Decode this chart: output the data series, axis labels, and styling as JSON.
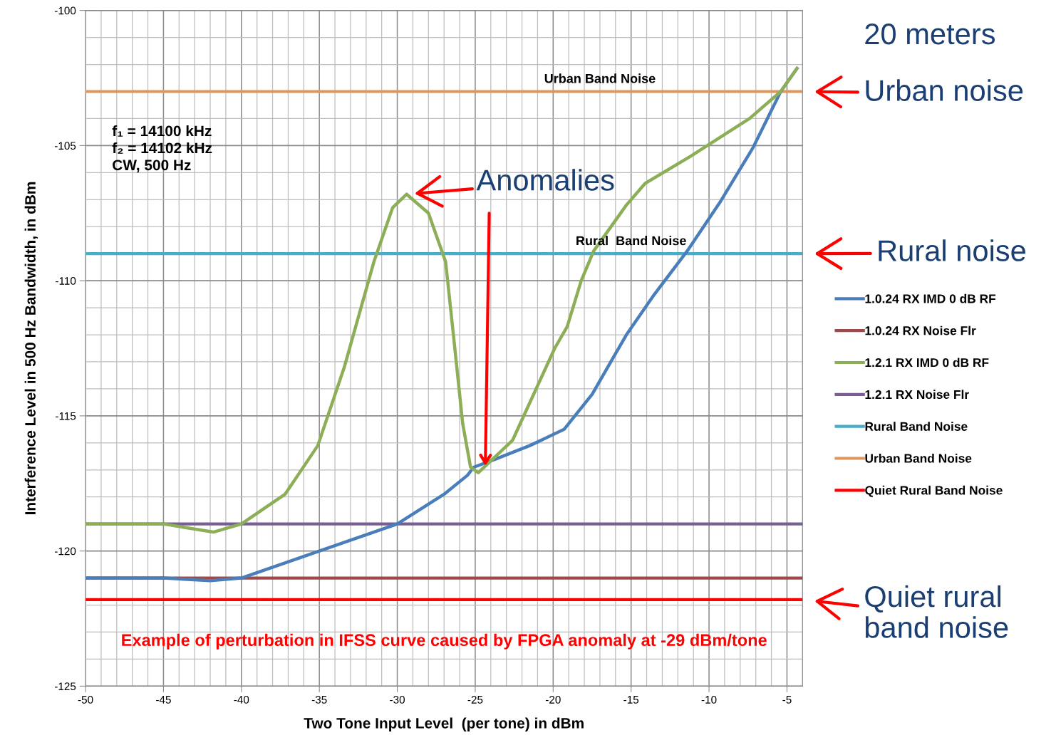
{
  "chart_data": {
    "type": "line",
    "xlabel": "Two Tone Input Level  (per tone) in dBm",
    "ylabel": "Interference Level in 500 Hz Bandwidth, in dBm",
    "xlim": [
      -50,
      -4
    ],
    "xticks": [
      -50,
      -45,
      -40,
      -35,
      -30,
      -25,
      -20,
      -15,
      -10,
      -5
    ],
    "ylim": [
      -125,
      -100
    ],
    "yticks": [
      -125,
      -120,
      -115,
      -110,
      -105,
      -100
    ],
    "grid": true,
    "legend": "right",
    "marker": "none",
    "line_style": "solid",
    "series": [
      {
        "name": "1.0.24 RX IMD 0 dB RF",
        "color": "#4a7ebb",
        "x": [
          -50,
          -45,
          -42,
          -40,
          -37.5,
          -35,
          -32.5,
          -30,
          -27,
          -25.5,
          -25.1,
          -23.7,
          -21.5,
          -19.3,
          -17.5,
          -16.2,
          -15.3,
          -13.5,
          -11.4,
          -9.3,
          -7.2,
          -5.4,
          -4.3
        ],
        "values": [
          -121.0,
          -121.0,
          -121.1,
          -121.0,
          -120.5,
          -120.0,
          -119.5,
          -119.0,
          -117.9,
          -117.2,
          -116.9,
          -116.6,
          -116.1,
          -115.5,
          -114.2,
          -112.9,
          -112.0,
          -110.5,
          -108.9,
          -107.1,
          -105.1,
          -103.0,
          -102.1
        ]
      },
      {
        "name": "1.0.24 RX Noise Flr",
        "color": "#a0494a",
        "x": [
          -50,
          -4
        ],
        "values": [
          -121,
          -121
        ]
      },
      {
        "name": "1.2.1 RX IMD 0 dB RF",
        "color": "#8cae56",
        "x": [
          -50,
          -45,
          -41.8,
          -40,
          -37.2,
          -35.1,
          -33.4,
          -31.5,
          -30.3,
          -29.4,
          -28.0,
          -26.9,
          -26.4,
          -25.8,
          -25.3,
          -24.8,
          -22.6,
          -19.9,
          -19.1,
          -18.2,
          -17.4,
          -15.3,
          -14.1,
          -11.2,
          -7.4,
          -5.4,
          -4.3
        ],
        "values": [
          -119,
          -119,
          -119.3,
          -119.0,
          -117.9,
          -116.1,
          -113.2,
          -109.3,
          -107.3,
          -106.8,
          -107.5,
          -109.3,
          -112.0,
          -115.3,
          -116.9,
          -117.1,
          -115.9,
          -112.5,
          -111.7,
          -110.0,
          -108.9,
          -107.2,
          -106.4,
          -105.4,
          -104.0,
          -103.0,
          -102.1
        ]
      },
      {
        "name": "1.2.1 RX Noise Flr",
        "color": "#7a5f97",
        "x": [
          -50,
          -4
        ],
        "values": [
          -119,
          -119
        ]
      },
      {
        "name": "Rural Band Noise",
        "color": "#4aacc6",
        "x": [
          -50,
          -4
        ],
        "values": [
          -109,
          -109
        ]
      },
      {
        "name": "Urban Band Noise",
        "color": "#e0955a",
        "x": [
          -50,
          -4
        ],
        "values": [
          -103,
          -103
        ]
      },
      {
        "name": "Quiet Rural Band Noise",
        "color": "#ff0000",
        "x": [
          -50,
          -4
        ],
        "values": [
          -121.8,
          -121.8
        ]
      }
    ],
    "annotations": [
      "f₁ = 14100 kHz\nf₂ = 14102 kHz\nCW, 500 Hz",
      {
        "text": "Urban Band Noise",
        "x": -17,
        "y": -103
      },
      {
        "text": "Rural  Band Noise",
        "x": -15,
        "y": -109
      },
      {
        "text": "Anomalies",
        "x": -29.4,
        "y": -106.8
      },
      "Example of perturbation in IFSS curve caused by FPGA anomaly at -29 dBm/tone",
      "20 meters",
      {
        "text": "Urban noise",
        "x": -4,
        "y": -103
      },
      {
        "text": "Rural noise",
        "x": -4,
        "y": -109
      },
      {
        "text": "Quiet rural\nband noise",
        "x": -4,
        "y": -121.8
      }
    ]
  }
}
